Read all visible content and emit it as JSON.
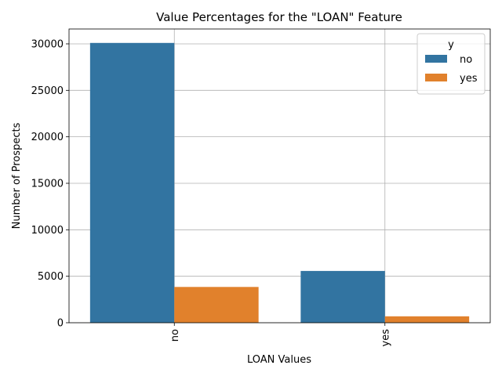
{
  "chart_data": {
    "type": "bar",
    "title": "Value Percentages for the \"LOAN\" Feature",
    "xlabel": "LOAN Values",
    "ylabel": "Number of Prospects",
    "categories": [
      "no",
      "yes"
    ],
    "series": [
      {
        "name": "no",
        "color": "#3274a1",
        "values": [
          30100,
          5570
        ]
      },
      {
        "name": "yes",
        "color": "#e1812c",
        "values": [
          3850,
          690
        ]
      }
    ],
    "ylim": [
      0,
      31600
    ],
    "yticks": [
      0,
      5000,
      10000,
      15000,
      20000,
      25000,
      30000
    ],
    "ytick_labels": [
      "0",
      "5000",
      "10000",
      "15000",
      "20000",
      "25000",
      "30000"
    ],
    "legend": {
      "title": "y",
      "placement": "top-right"
    },
    "grid": true,
    "xtick_rotation": "vertical"
  }
}
